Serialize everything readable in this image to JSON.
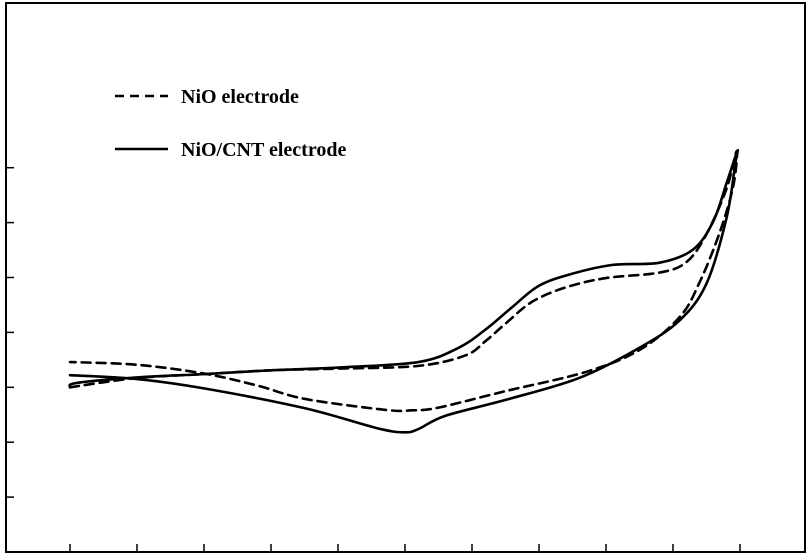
{
  "chart_data": {
    "type": "line",
    "title": "",
    "xlabel": "",
    "ylabel": "",
    "grid": false,
    "legend_position": "top-left",
    "series_color": "#000000",
    "xlim": [
      0,
      100
    ],
    "ylim": [
      0,
      100
    ],
    "x_ticks": [
      0,
      10,
      20,
      30,
      40,
      50,
      60,
      70,
      80,
      90,
      100
    ],
    "y_ticks": [
      10,
      20,
      30,
      40,
      50,
      60,
      70
    ],
    "series": [
      {
        "name": "NiO electrode",
        "line_style": "dashed",
        "points": [
          [
            0,
            30
          ],
          [
            10,
            31.7
          ],
          [
            20,
            32.4
          ],
          [
            30,
            33.1
          ],
          [
            40,
            33.4
          ],
          [
            52,
            33.9
          ],
          [
            59,
            35.8
          ],
          [
            62,
            38.4
          ],
          [
            65,
            41.6
          ],
          [
            69,
            45.6
          ],
          [
            74,
            48.2
          ],
          [
            80,
            49.9
          ],
          [
            88,
            50.9
          ],
          [
            92,
            52.8
          ],
          [
            95,
            57.9
          ],
          [
            98,
            66.2
          ],
          [
            99.5,
            73
          ],
          [
            99,
            66.7
          ],
          [
            97,
            58.3
          ],
          [
            94,
            49.2
          ],
          [
            91,
            42.8
          ],
          [
            85,
            36.8
          ],
          [
            77,
            32.8
          ],
          [
            65,
            29.3
          ],
          [
            55,
            26.3
          ],
          [
            51,
            25.8
          ],
          [
            47,
            25.9
          ],
          [
            35,
            27.9
          ],
          [
            28,
            30.3
          ],
          [
            20,
            32.5
          ],
          [
            10,
            34.1
          ],
          [
            0,
            34.6
          ]
        ]
      },
      {
        "name": "NiO/CNT electrode",
        "line_style": "solid",
        "points": [
          [
            0,
            30
          ],
          [
            1,
            30.8
          ],
          [
            10,
            31.8
          ],
          [
            20,
            32.4
          ],
          [
            30,
            33.1
          ],
          [
            40,
            33.6
          ],
          [
            52,
            34.6
          ],
          [
            58,
            37.2
          ],
          [
            62,
            40.5
          ],
          [
            66,
            44.6
          ],
          [
            70,
            48.5
          ],
          [
            75,
            50.7
          ],
          [
            81,
            52.3
          ],
          [
            88,
            52.7
          ],
          [
            93,
            55.1
          ],
          [
            96,
            60.2
          ],
          [
            98,
            67.2
          ],
          [
            99.6,
            73
          ],
          [
            99.3,
            70.8
          ],
          [
            98,
            60.9
          ],
          [
            95,
            48.9
          ],
          [
            91,
            42.2
          ],
          [
            85,
            37.2
          ],
          [
            76,
            31.7
          ],
          [
            65,
            27.7
          ],
          [
            56,
            24.8
          ],
          [
            52,
            22.4
          ],
          [
            50,
            21.8
          ],
          [
            46,
            22.5
          ],
          [
            35,
            26.2
          ],
          [
            20,
            29.8
          ],
          [
            10,
            31.5
          ],
          [
            0,
            32.2
          ]
        ]
      }
    ]
  }
}
